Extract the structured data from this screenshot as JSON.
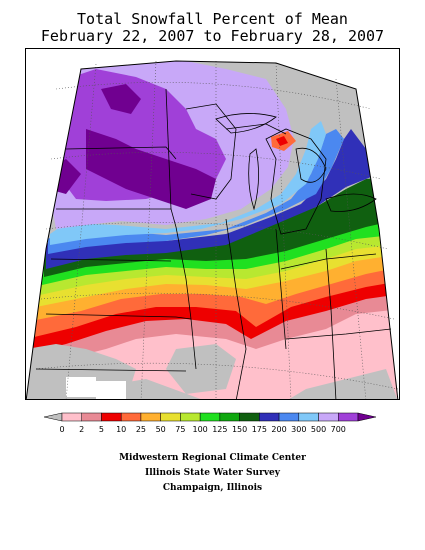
{
  "title": {
    "line1": "Total Snowfall Percent of Mean",
    "line2": "February 22, 2007 to February 28, 2007"
  },
  "legend": {
    "labels": [
      "0",
      "2",
      "5",
      "10",
      "25",
      "50",
      "75",
      "100",
      "125",
      "150",
      "175",
      "200",
      "300",
      "500",
      "700"
    ],
    "colors": [
      "#c0c0c0",
      "#ffc0cb",
      "#e88a95",
      "#ee0000",
      "#ff6a3a",
      "#ffb030",
      "#e8e030",
      "#b8e830",
      "#20e020",
      "#10a810",
      "#106010",
      "#3030b8",
      "#4b88f0",
      "#80c8f8",
      "#c8a8f8",
      "#a040d8",
      "#700090"
    ]
  },
  "credits": {
    "line1": "Midwestern Regional Climate Center",
    "line2": "Illinois State Water Survey",
    "line3": "Champaign, Illinois"
  }
}
